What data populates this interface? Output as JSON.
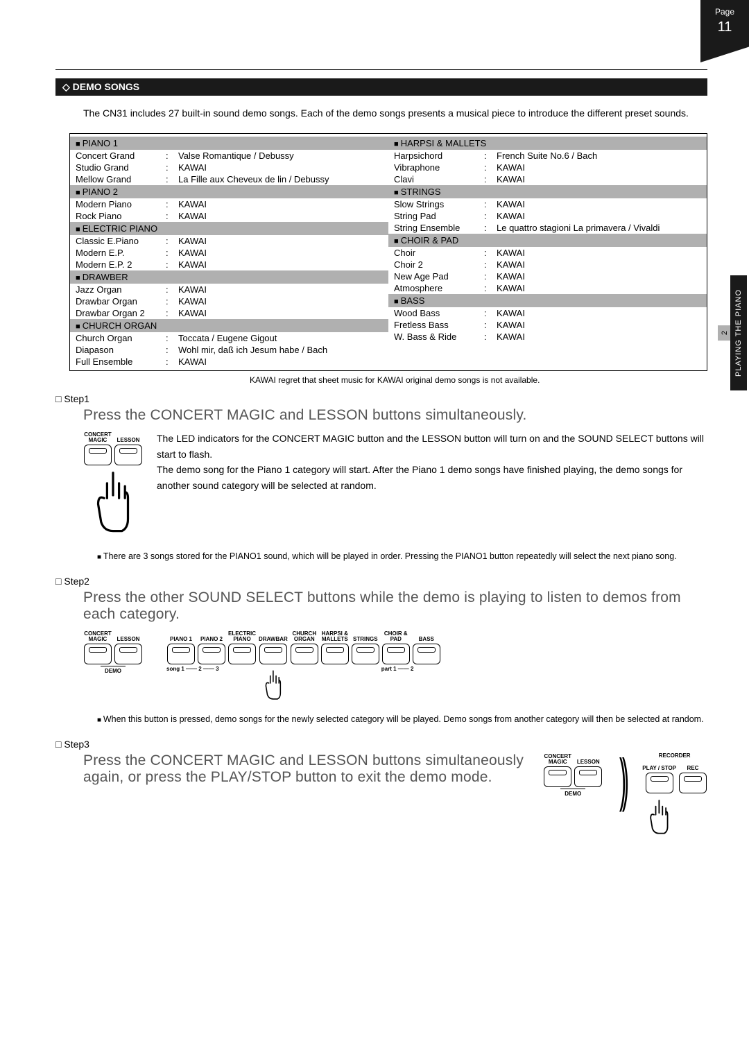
{
  "page_tab": {
    "label": "Page",
    "number": "11"
  },
  "side_tab": {
    "main": "PLAYING THE PIANO",
    "num": "2"
  },
  "section_title": "DEMO SONGS",
  "intro": "The CN31 includes 27 built-in sound demo songs. Each of the demo songs presents a musical piece to introduce the different preset sounds.",
  "left_groups": [
    {
      "name": "PIANO 1",
      "rows": [
        {
          "l": "Concert Grand",
          "v": "Valse Romantique / Debussy"
        },
        {
          "l": "Studio Grand",
          "v": "KAWAI"
        },
        {
          "l": "Mellow Grand",
          "v": "La Fille aux Cheveux de lin / Debussy"
        }
      ]
    },
    {
      "name": "PIANO 2",
      "rows": [
        {
          "l": "Modern Piano",
          "v": "KAWAI"
        },
        {
          "l": "Rock Piano",
          "v": "KAWAI"
        }
      ]
    },
    {
      "name": "ELECTRIC PIANO",
      "rows": [
        {
          "l": "Classic E.Piano",
          "v": "KAWAI"
        },
        {
          "l": "Modern E.P.",
          "v": "KAWAI"
        },
        {
          "l": "Modern E.P. 2",
          "v": "KAWAI"
        }
      ]
    },
    {
      "name": "DRAWBER",
      "rows": [
        {
          "l": "Jazz Organ",
          "v": "KAWAI"
        },
        {
          "l": "Drawbar Organ",
          "v": "KAWAI"
        },
        {
          "l": "Drawbar Organ 2",
          "v": "KAWAI"
        }
      ]
    },
    {
      "name": "CHURCH ORGAN",
      "rows": [
        {
          "l": "Church Organ",
          "v": "Toccata / Eugene Gigout"
        },
        {
          "l": "Diapason",
          "v": "Wohl mir, daß ich Jesum habe / Bach"
        },
        {
          "l": "Full Ensemble",
          "v": "KAWAI"
        }
      ]
    }
  ],
  "right_groups": [
    {
      "name": "HARPSI & MALLETS",
      "rows": [
        {
          "l": "Harpsichord",
          "v": "French Suite No.6 / Bach"
        },
        {
          "l": "Vibraphone",
          "v": "KAWAI"
        },
        {
          "l": "Clavi",
          "v": "KAWAI"
        }
      ]
    },
    {
      "name": "STRINGS",
      "rows": [
        {
          "l": "Slow Strings",
          "v": "KAWAI"
        },
        {
          "l": "String Pad",
          "v": "KAWAI"
        },
        {
          "l": "String Ensemble",
          "v": "Le quattro stagioni La primavera / Vivaldi"
        }
      ]
    },
    {
      "name": "CHOIR & PAD",
      "rows": [
        {
          "l": "Choir",
          "v": "KAWAI"
        },
        {
          "l": "Choir 2",
          "v": "KAWAI"
        },
        {
          "l": "New Age Pad",
          "v": "KAWAI"
        },
        {
          "l": "Atmosphere",
          "v": "KAWAI"
        }
      ]
    },
    {
      "name": "BASS",
      "rows": [
        {
          "l": "Wood Bass",
          "v": "KAWAI"
        },
        {
          "l": "Fretless Bass",
          "v": "KAWAI"
        },
        {
          "l": "W. Bass & Ride",
          "v": "KAWAI"
        }
      ]
    }
  ],
  "table_footnote": "KAWAI regret that sheet music for KAWAI original demo songs is not available.",
  "step1": {
    "h": "Step1",
    "main": "Press the CONCERT MAGIC and LESSON buttons simultaneously.",
    "text1": "The LED indicators for the CONCERT MAGIC button and the LESSON button will turn on and the SOUND SELECT buttons will start to flash.",
    "text2": "The demo song for the Piano 1 category will start. After the Piano 1 demo songs have finished playing, the demo songs for another sound category will be selected at random.",
    "note": "There are 3 songs stored for the PIANO1 sound, which will be played in order. Pressing the PIANO1 button repeatedly will select the next piano song."
  },
  "step2": {
    "h": "Step2",
    "main": "Press the other SOUND SELECT buttons while the demo is playing to listen to demos from each category.",
    "note": "When this button is pressed, demo songs for the newly selected category will be played. Demo songs from another category will then be selected at random."
  },
  "step3": {
    "h": "Step3",
    "main": "Press the CONCERT MAGIC and LESSON buttons simultaneously again, or press the PLAY/STOP button to exit the demo mode."
  },
  "buttons": {
    "concert_magic": "CONCERT\nMAGIC",
    "lesson": "LESSON",
    "demo": "DEMO",
    "piano1": "PIANO 1",
    "piano2": "PIANO 2",
    "electric": "ELECTRIC\nPIANO",
    "drawbar": "DRAWBAR",
    "church": "CHURCH\nORGAN",
    "harpsi": "HARPSI &\nMALLETS",
    "strings": "STRINGS",
    "choir": "CHOIR &\nPAD",
    "bass": "BASS",
    "song": "song 1 —— 2 —— 3",
    "part": "part 1 —— 2",
    "recorder": "RECORDER",
    "playstop": "PLAY / STOP",
    "rec": "REC"
  }
}
